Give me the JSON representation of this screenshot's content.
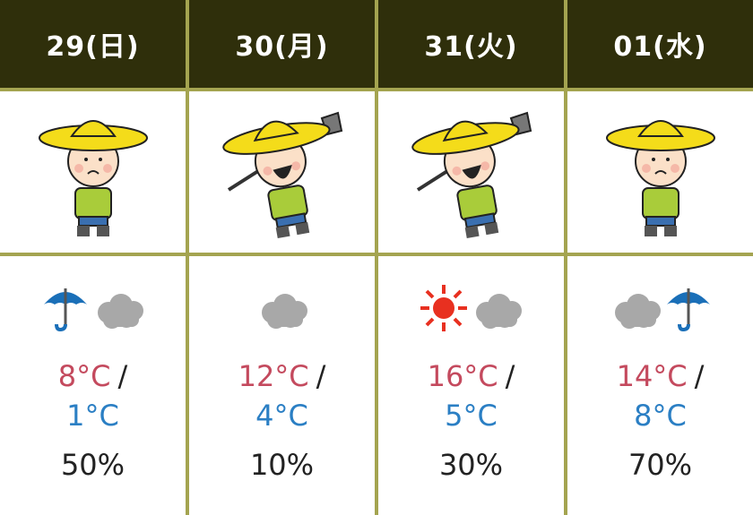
{
  "days": [
    {
      "date": "29(日)",
      "character": "worried",
      "weather": [
        "umbrella",
        "cloud"
      ],
      "high": "8°C",
      "low": "1°C",
      "pop": "50%"
    },
    {
      "date": "30(月)",
      "character": "cheering-with-hoe",
      "weather": [
        "cloud"
      ],
      "high": "12°C",
      "low": "4°C",
      "pop": "10%"
    },
    {
      "date": "31(火)",
      "character": "cheering-with-hoe",
      "weather": [
        "sun",
        "cloud"
      ],
      "high": "16°C",
      "low": "5°C",
      "pop": "30%"
    },
    {
      "date": "01(水)",
      "character": "thinking-pointing",
      "weather": [
        "cloud",
        "umbrella"
      ],
      "high": "14°C",
      "low": "8°C",
      "pop": "70%"
    }
  ],
  "separator": "/",
  "colors": {
    "header_bg": "#2f2f0b",
    "border": "#a4a450",
    "high": "#c44a5e",
    "low": "#2b7fc4",
    "umbrella": "#1a6fb8",
    "cloud": "#a8a8a8",
    "sun": "#e83020"
  }
}
